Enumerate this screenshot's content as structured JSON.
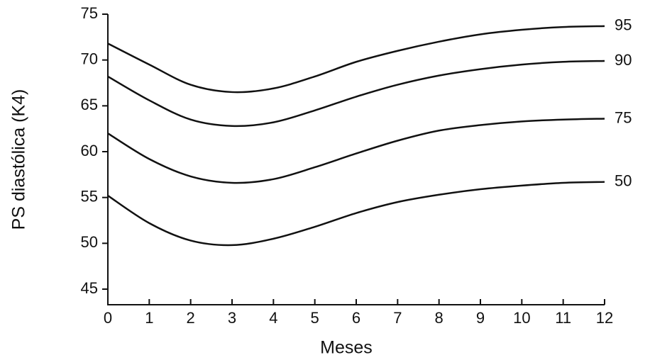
{
  "chart_data": {
    "type": "line",
    "x_label": "Meses",
    "y_label": "PS diastólica (K4)",
    "x": [
      0,
      1,
      2,
      3,
      4,
      5,
      6,
      7,
      8,
      9,
      10,
      11,
      12
    ],
    "series": [
      {
        "name": "95",
        "color": "#111111",
        "values": [
          71.8,
          69.5,
          67.3,
          66.5,
          66.9,
          68.2,
          69.8,
          71.0,
          72.0,
          72.8,
          73.3,
          73.6,
          73.7
        ]
      },
      {
        "name": "90",
        "color": "#111111",
        "values": [
          68.2,
          65.6,
          63.5,
          62.8,
          63.2,
          64.5,
          66.0,
          67.3,
          68.3,
          69.0,
          69.5,
          69.8,
          69.9
        ]
      },
      {
        "name": "75",
        "color": "#111111",
        "values": [
          62.0,
          59.2,
          57.3,
          56.6,
          57.0,
          58.3,
          59.8,
          61.2,
          62.3,
          62.9,
          63.3,
          63.5,
          63.6
        ]
      },
      {
        "name": "50",
        "color": "#111111",
        "values": [
          55.2,
          52.2,
          50.3,
          49.8,
          50.5,
          51.8,
          53.3,
          54.5,
          55.3,
          55.9,
          56.3,
          56.6,
          56.7
        ]
      }
    ],
    "xlim": [
      0,
      12
    ],
    "xticks": [
      0,
      1,
      2,
      3,
      4,
      5,
      6,
      7,
      8,
      9,
      10,
      11,
      12
    ],
    "ylim": [
      43.3,
      75
    ],
    "yticks": [
      45,
      50,
      55,
      60,
      65,
      70,
      75
    ],
    "grid": false
  }
}
